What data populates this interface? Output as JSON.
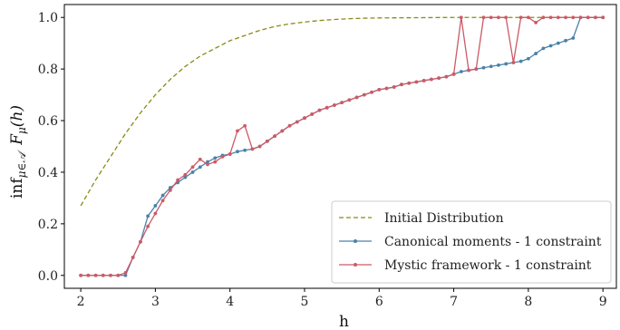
{
  "colors": {
    "initial": "#8a8a18",
    "canonical": "#4a82a8",
    "mystic": "#cc5a66",
    "axis": "#000000",
    "legend_border": "#cccccc"
  },
  "chart_data": {
    "type": "line",
    "title": "",
    "xlabel": "h",
    "ylabel": "inf_{μ∈A} F_μ(h)",
    "ylabel_main": "inf",
    "ylabel_sub": "μ∈𝒜",
    "ylabel_func": "F",
    "ylabel_funcsub": "μ",
    "ylabel_arg": "(h)",
    "xlim": [
      1.78,
      9.18
    ],
    "ylim": [
      -0.05,
      1.05
    ],
    "xticks": [
      2,
      3,
      4,
      5,
      6,
      7,
      8,
      9
    ],
    "yticks": [
      0.0,
      0.2,
      0.4,
      0.6,
      0.8,
      1.0
    ],
    "xtick_labels": [
      "2",
      "3",
      "4",
      "5",
      "6",
      "7",
      "8",
      "9"
    ],
    "ytick_labels": [
      "0.0",
      "0.2",
      "0.4",
      "0.6",
      "0.8",
      "1.0"
    ],
    "legend_position": "lower-right",
    "grid": false,
    "series": [
      {
        "name": "Initial Distribution",
        "style": "dashed",
        "markers": false,
        "x": [
          2.0,
          2.2,
          2.4,
          2.6,
          2.8,
          3.0,
          3.2,
          3.4,
          3.6,
          3.8,
          4.0,
          4.2,
          4.4,
          4.6,
          4.8,
          5.0,
          5.2,
          5.4,
          5.6,
          5.8,
          6.0,
          6.5,
          7.0,
          7.5,
          8.0,
          8.5,
          9.0
        ],
        "y": [
          0.27,
          0.37,
          0.46,
          0.55,
          0.63,
          0.7,
          0.76,
          0.81,
          0.85,
          0.88,
          0.91,
          0.93,
          0.95,
          0.965,
          0.975,
          0.982,
          0.988,
          0.992,
          0.995,
          0.997,
          0.998,
          0.999,
          1.0,
          1.0,
          1.0,
          1.0,
          1.0
        ]
      },
      {
        "name": "Canonical moments - 1 constraint",
        "style": "solid",
        "markers": true,
        "x": [
          2.0,
          2.1,
          2.2,
          2.3,
          2.4,
          2.5,
          2.6,
          2.7,
          2.8,
          2.9,
          3.0,
          3.1,
          3.2,
          3.3,
          3.4,
          3.5,
          3.6,
          3.7,
          3.8,
          3.9,
          4.0,
          4.1,
          4.2,
          4.3,
          4.4,
          4.5,
          4.6,
          4.7,
          4.8,
          4.9,
          5.0,
          5.1,
          5.2,
          5.3,
          5.4,
          5.5,
          5.6,
          5.7,
          5.8,
          5.9,
          6.0,
          6.1,
          6.2,
          6.3,
          6.4,
          6.5,
          6.6,
          6.7,
          6.8,
          6.9,
          7.0,
          7.1,
          7.2,
          7.3,
          7.4,
          7.5,
          7.6,
          7.7,
          7.8,
          7.9,
          8.0,
          8.1,
          8.2,
          8.3,
          8.4,
          8.5,
          8.6,
          8.7,
          8.8,
          8.9,
          9.0
        ],
        "y": [
          0.0,
          0.0,
          0.0,
          0.0,
          0.0,
          0.0,
          0.0,
          0.07,
          0.13,
          0.23,
          0.27,
          0.31,
          0.34,
          0.36,
          0.38,
          0.4,
          0.42,
          0.44,
          0.455,
          0.465,
          0.47,
          0.48,
          0.485,
          0.49,
          0.5,
          0.52,
          0.54,
          0.56,
          0.58,
          0.595,
          0.61,
          0.625,
          0.64,
          0.65,
          0.66,
          0.67,
          0.68,
          0.69,
          0.7,
          0.71,
          0.72,
          0.725,
          0.73,
          0.74,
          0.745,
          0.75,
          0.755,
          0.76,
          0.765,
          0.77,
          0.78,
          0.79,
          0.795,
          0.8,
          0.805,
          0.81,
          0.815,
          0.82,
          0.825,
          0.83,
          0.84,
          0.86,
          0.88,
          0.89,
          0.9,
          0.91,
          0.92,
          1.0,
          1.0,
          1.0,
          1.0
        ]
      },
      {
        "name": "Mystic framework - 1 constraint",
        "style": "solid",
        "markers": true,
        "x": [
          2.0,
          2.1,
          2.2,
          2.3,
          2.4,
          2.5,
          2.6,
          2.7,
          2.8,
          2.9,
          3.0,
          3.1,
          3.2,
          3.3,
          3.4,
          3.5,
          3.6,
          3.7,
          3.8,
          3.9,
          4.0,
          4.1,
          4.2,
          4.3,
          4.4,
          4.5,
          4.6,
          4.7,
          4.8,
          4.9,
          5.0,
          5.1,
          5.2,
          5.3,
          5.4,
          5.5,
          5.6,
          5.7,
          5.8,
          5.9,
          6.0,
          6.1,
          6.2,
          6.3,
          6.4,
          6.5,
          6.6,
          6.7,
          6.8,
          6.9,
          7.0,
          7.1,
          7.2,
          7.3,
          7.4,
          7.5,
          7.6,
          7.7,
          7.8,
          7.9,
          8.0,
          8.1,
          8.2,
          8.3,
          8.4,
          8.5,
          8.6,
          8.7,
          8.8,
          8.9,
          9.0
        ],
        "y": [
          0.0,
          0.0,
          0.0,
          0.0,
          0.0,
          0.0,
          0.01,
          0.07,
          0.13,
          0.19,
          0.24,
          0.29,
          0.33,
          0.37,
          0.39,
          0.42,
          0.45,
          0.43,
          0.44,
          0.46,
          0.47,
          0.56,
          0.58,
          0.49,
          0.5,
          0.52,
          0.54,
          0.56,
          0.58,
          0.595,
          0.61,
          0.625,
          0.64,
          0.65,
          0.66,
          0.67,
          0.68,
          0.69,
          0.7,
          0.71,
          0.72,
          0.725,
          0.73,
          0.74,
          0.745,
          0.75,
          0.755,
          0.76,
          0.765,
          0.77,
          0.78,
          1.0,
          0.795,
          0.8,
          1.0,
          1.0,
          1.0,
          1.0,
          0.825,
          1.0,
          1.0,
          0.98,
          1.0,
          1.0,
          1.0,
          1.0,
          1.0,
          1.0,
          1.0,
          1.0,
          1.0
        ]
      }
    ]
  }
}
